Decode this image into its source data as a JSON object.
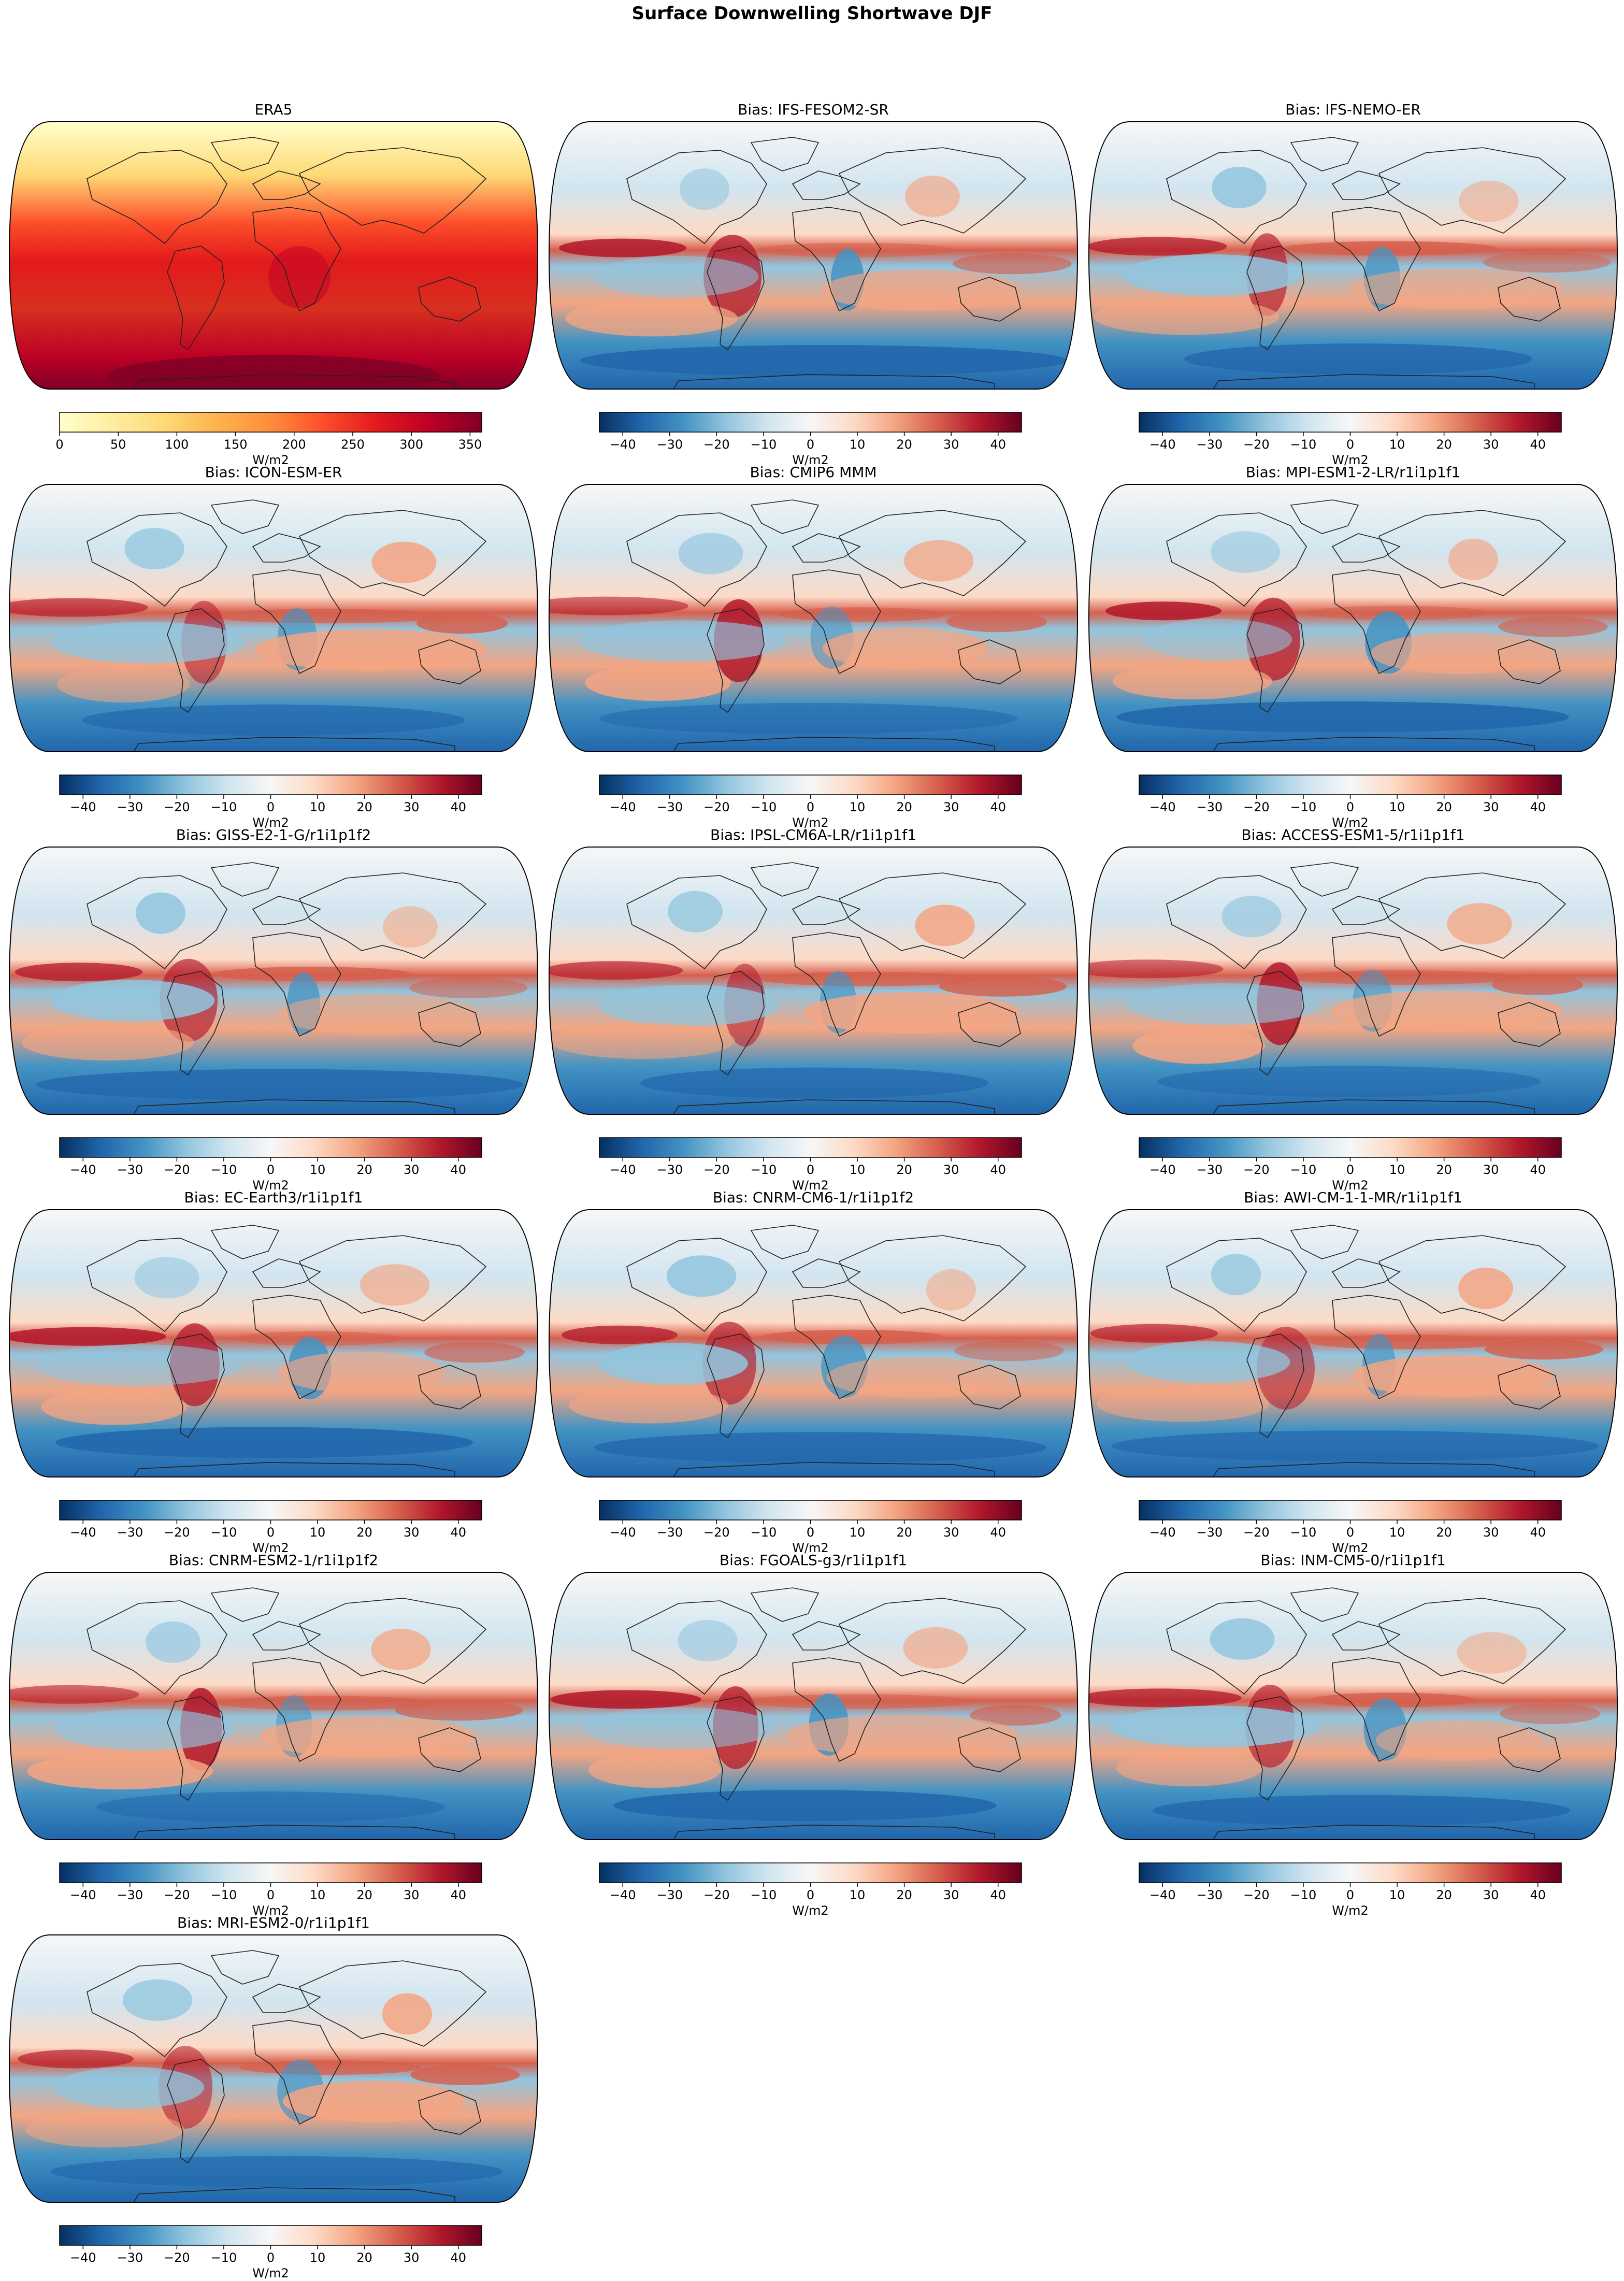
{
  "figure": {
    "title": "Surface Downwelling Shortwave DJF"
  },
  "chart_data": [
    {
      "type": "heatmap",
      "title": "ERA5",
      "projection": "robinson",
      "colormap": "YlOrRd",
      "colorbar": {
        "label": "W/m2",
        "ticks": [
          0,
          50,
          100,
          150,
          200,
          250,
          300,
          350
        ],
        "range": [
          0,
          360
        ]
      }
    },
    {
      "type": "heatmap",
      "title": "Bias: IFS-FESOM2-SR",
      "projection": "robinson",
      "colormap": "RdBu_r",
      "colorbar": {
        "label": "W/m2",
        "ticks": [
          -40,
          -30,
          -20,
          -10,
          0,
          10,
          20,
          30,
          40
        ],
        "range": [
          -45,
          45
        ]
      }
    },
    {
      "type": "heatmap",
      "title": "Bias: IFS-NEMO-ER",
      "projection": "robinson",
      "colormap": "RdBu_r",
      "colorbar": {
        "label": "W/m2",
        "ticks": [
          -40,
          -30,
          -20,
          -10,
          0,
          10,
          20,
          30,
          40
        ],
        "range": [
          -45,
          45
        ]
      }
    },
    {
      "type": "heatmap",
      "title": "Bias: ICON-ESM-ER",
      "projection": "robinson",
      "colormap": "RdBu_r",
      "colorbar": {
        "label": "W/m2",
        "ticks": [
          -40,
          -30,
          -20,
          -10,
          0,
          10,
          20,
          30,
          40
        ],
        "range": [
          -45,
          45
        ]
      }
    },
    {
      "type": "heatmap",
      "title": "Bias: CMIP6 MMM",
      "projection": "robinson",
      "colormap": "RdBu_r",
      "colorbar": {
        "label": "W/m2",
        "ticks": [
          -40,
          -30,
          -20,
          -10,
          0,
          10,
          20,
          30,
          40
        ],
        "range": [
          -45,
          45
        ]
      }
    },
    {
      "type": "heatmap",
      "title": "Bias: MPI-ESM1-2-LR/r1i1p1f1",
      "projection": "robinson",
      "colormap": "RdBu_r",
      "colorbar": {
        "label": "W/m2",
        "ticks": [
          -40,
          -30,
          -20,
          -10,
          0,
          10,
          20,
          30,
          40
        ],
        "range": [
          -45,
          45
        ]
      }
    },
    {
      "type": "heatmap",
      "title": "Bias: GISS-E2-1-G/r1i1p1f2",
      "projection": "robinson",
      "colormap": "RdBu_r",
      "colorbar": {
        "label": "W/m2",
        "ticks": [
          -40,
          -30,
          -20,
          -10,
          0,
          10,
          20,
          30,
          40
        ],
        "range": [
          -45,
          45
        ]
      }
    },
    {
      "type": "heatmap",
      "title": "Bias: IPSL-CM6A-LR/r1i1p1f1",
      "projection": "robinson",
      "colormap": "RdBu_r",
      "colorbar": {
        "label": "W/m2",
        "ticks": [
          -40,
          -30,
          -20,
          -10,
          0,
          10,
          20,
          30,
          40
        ],
        "range": [
          -45,
          45
        ]
      }
    },
    {
      "type": "heatmap",
      "title": "Bias: ACCESS-ESM1-5/r1i1p1f1",
      "projection": "robinson",
      "colormap": "RdBu_r",
      "colorbar": {
        "label": "W/m2",
        "ticks": [
          -40,
          -30,
          -20,
          -10,
          0,
          10,
          20,
          30,
          40
        ],
        "range": [
          -45,
          45
        ]
      }
    },
    {
      "type": "heatmap",
      "title": "Bias: EC-Earth3/r1i1p1f1",
      "projection": "robinson",
      "colormap": "RdBu_r",
      "colorbar": {
        "label": "W/m2",
        "ticks": [
          -40,
          -30,
          -20,
          -10,
          0,
          10,
          20,
          30,
          40
        ],
        "range": [
          -45,
          45
        ]
      }
    },
    {
      "type": "heatmap",
      "title": "Bias: CNRM-CM6-1/r1i1p1f2",
      "projection": "robinson",
      "colormap": "RdBu_r",
      "colorbar": {
        "label": "W/m2",
        "ticks": [
          -40,
          -30,
          -20,
          -10,
          0,
          10,
          20,
          30,
          40
        ],
        "range": [
          -45,
          45
        ]
      }
    },
    {
      "type": "heatmap",
      "title": "Bias: AWI-CM-1-1-MR/r1i1p1f1",
      "projection": "robinson",
      "colormap": "RdBu_r",
      "colorbar": {
        "label": "W/m2",
        "ticks": [
          -40,
          -30,
          -20,
          -10,
          0,
          10,
          20,
          30,
          40
        ],
        "range": [
          -45,
          45
        ]
      }
    },
    {
      "type": "heatmap",
      "title": "Bias: CNRM-ESM2-1/r1i1p1f2",
      "projection": "robinson",
      "colormap": "RdBu_r",
      "colorbar": {
        "label": "W/m2",
        "ticks": [
          -40,
          -30,
          -20,
          -10,
          0,
          10,
          20,
          30,
          40
        ],
        "range": [
          -45,
          45
        ]
      }
    },
    {
      "type": "heatmap",
      "title": "Bias: FGOALS-g3/r1i1p1f1",
      "projection": "robinson",
      "colormap": "RdBu_r",
      "colorbar": {
        "label": "W/m2",
        "ticks": [
          -40,
          -30,
          -20,
          -10,
          0,
          10,
          20,
          30,
          40
        ],
        "range": [
          -45,
          45
        ]
      }
    },
    {
      "type": "heatmap",
      "title": "Bias: INM-CM5-0/r1i1p1f1",
      "projection": "robinson",
      "colormap": "RdBu_r",
      "colorbar": {
        "label": "W/m2",
        "ticks": [
          -40,
          -30,
          -20,
          -10,
          0,
          10,
          20,
          30,
          40
        ],
        "range": [
          -45,
          45
        ]
      }
    },
    {
      "type": "heatmap",
      "title": "Bias: MRI-ESM2-0/r1i1p1f1",
      "projection": "robinson",
      "colormap": "RdBu_r",
      "colorbar": {
        "label": "W/m2",
        "ticks": [
          -40,
          -30,
          -20,
          -10,
          0,
          10,
          20,
          30,
          40
        ],
        "range": [
          -45,
          45
        ]
      }
    }
  ]
}
